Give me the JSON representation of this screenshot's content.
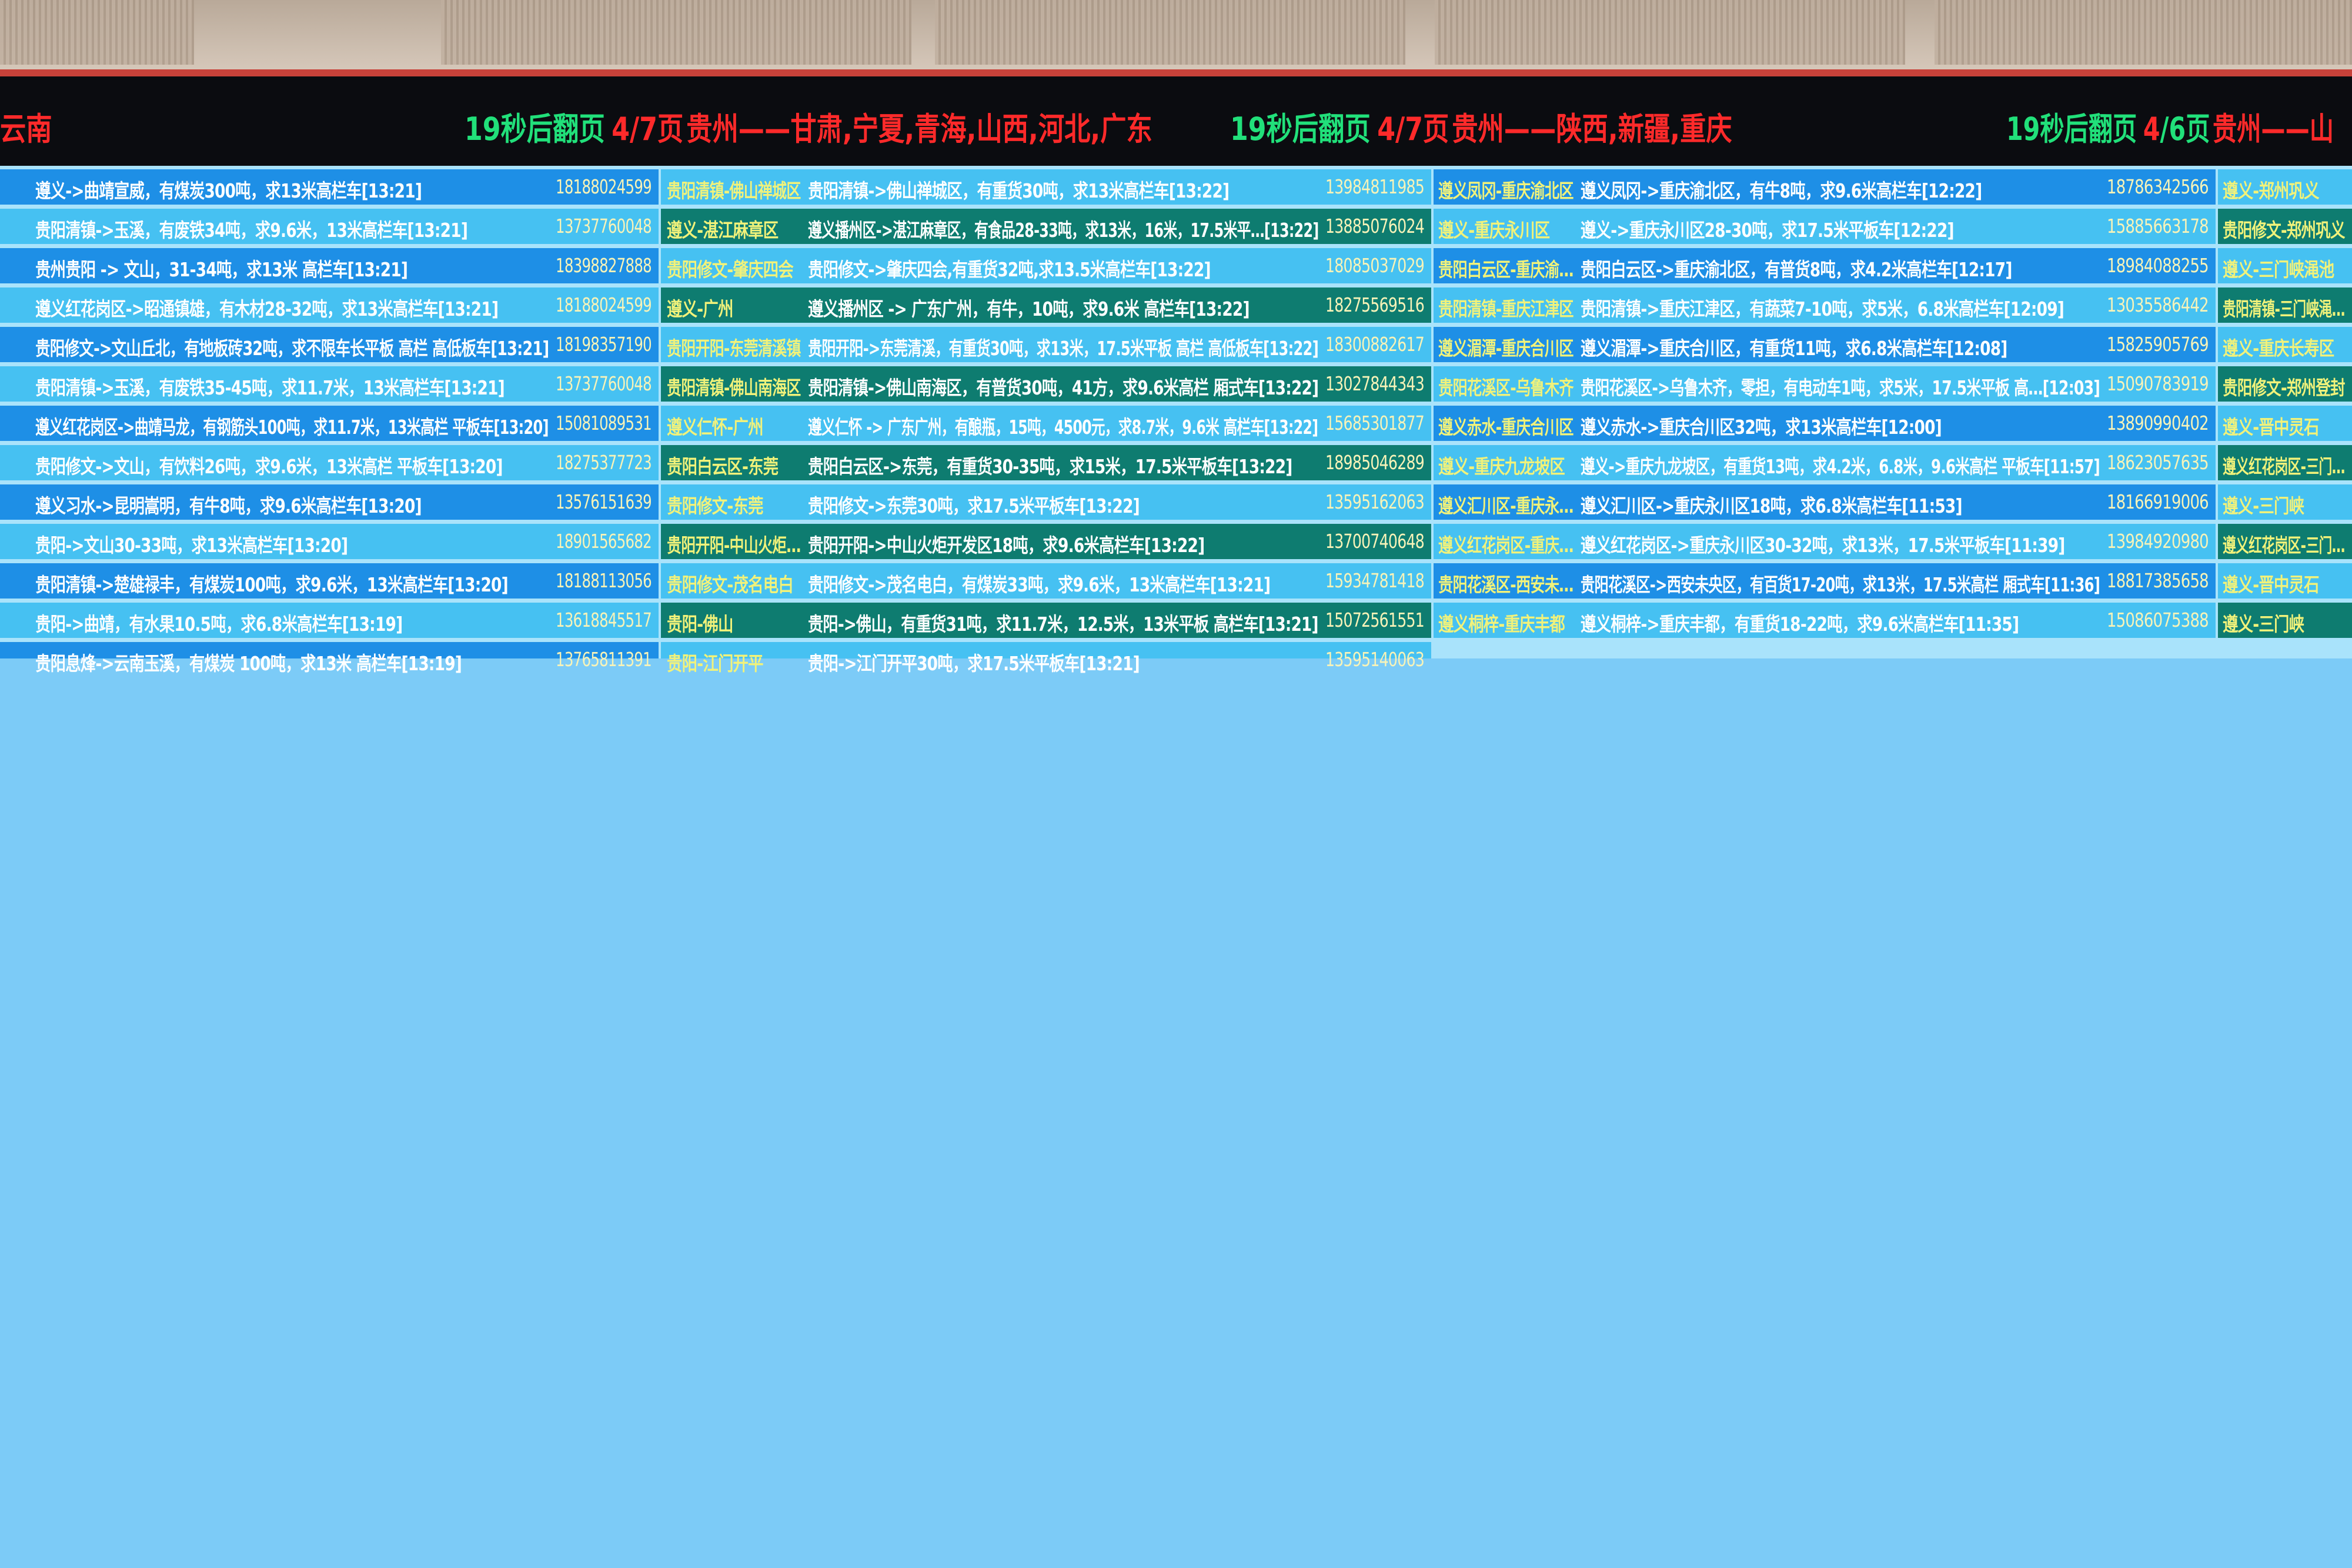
{
  "colors": {
    "dark_blue": "#1e8fe6",
    "light_blue": "#46c1f2",
    "teal": "#0e7c70",
    "label_yellow": "#f1f27a",
    "header_green": "#21e07a",
    "header_red": "#ff2a2a"
  },
  "headers": [
    {
      "region": "云南"
    },
    {
      "countdown": "19秒后翻页",
      "page_current": "4",
      "page_rest": "/7页",
      "region": "贵州——甘肃,宁夏,青海,山西,河北,广东"
    },
    {
      "countdown": "19秒后翻页",
      "page_current": "4",
      "page_rest": "/7页",
      "region": "贵州——陕西,新疆,重庆"
    },
    {
      "countdown": "19秒后翻页",
      "page_current": "4",
      "page_rest": "/6页",
      "region": "贵州——山"
    }
  ],
  "columns": [
    {
      "rows": [
        {
          "desc": "遵义->曲靖宣威，有煤炭300吨，求13米高栏车[13:21]",
          "phone": "18188024599"
        },
        {
          "desc": "贵阳清镇->玉溪，有废铁34吨，求9.6米，13米高栏车[13:21]",
          "phone": "13737760048"
        },
        {
          "desc": "贵州贵阳 -> 文山，31-34吨，求13米 高栏车[13:21]",
          "phone": "18398827888"
        },
        {
          "desc": "遵义红花岗区->昭通镇雄，有木材28-32吨，求13米高栏车[13:21]",
          "phone": "18188024599"
        },
        {
          "desc": "贵阳修文->文山丘北，有地板砖32吨，求不限车长平板 高栏 高低板车[13:21]",
          "phone": "18198357190"
        },
        {
          "desc": "贵阳清镇->玉溪，有废铁35-45吨，求11.7米，13米高栏车[13:21]",
          "phone": "13737760048"
        },
        {
          "desc": "遵义红花岗区->曲靖马龙，有钢筋头100吨，求11.7米，13米高栏 平板车[13:20]",
          "phone": "15081089531"
        },
        {
          "desc": "贵阳修文->文山，有饮料26吨，求9.6米，13米高栏 平板车[13:20]",
          "phone": "18275377723"
        },
        {
          "desc": "遵义习水->昆明嵩明，有牛8吨，求9.6米高栏车[13:20]",
          "phone": "13576151639"
        },
        {
          "desc": "贵阳->文山30-33吨，求13米高栏车[13:20]",
          "phone": "18901565682"
        },
        {
          "desc": "贵阳清镇->楚雄禄丰，有煤炭100吨，求9.6米，13米高栏车[13:20]",
          "phone": "18188113056"
        },
        {
          "desc": "贵阳->曲靖，有水果10.5吨，求6.8米高栏车[13:19]",
          "phone": "13618845517"
        },
        {
          "desc": "贵阳息烽->云南玉溪，有煤炭 100吨，求13米 高栏车[13:19]",
          "phone": "13765811391"
        }
      ]
    },
    {
      "rows": [
        {
          "route": "贵阳清镇-佛山禅城区",
          "desc": "贵阳清镇->佛山禅城区，有重货30吨，求13米高栏车[13:22]",
          "phone": "13984811985"
        },
        {
          "route": "遵义-湛江麻章区",
          "desc": "遵义播州区->湛江麻章区，有食品28-33吨，求13米，16米，17.5米平…[13:22]",
          "phone": "13885076024"
        },
        {
          "route": "贵阳修文-肇庆四会",
          "desc": "贵阳修文->肇庆四会,有重货32吨,求13.5米高栏车[13:22]",
          "phone": "18085037029"
        },
        {
          "route": "遵义-广州",
          "desc": "遵义播州区 -> 广东广州，有牛，10吨，求9.6米 高栏车[13:22]",
          "phone": "18275569516"
        },
        {
          "route": "贵阳开阳-东莞清溪镇",
          "desc": "贵阳开阳->东莞清溪，有重货30吨，求13米，17.5米平板 高栏 高低板车[13:22]",
          "phone": "18300882617"
        },
        {
          "route": "贵阳清镇-佛山南海区",
          "desc": "贵阳清镇->佛山南海区，有普货30吨，41方，求9.6米高栏 厢式车[13:22]",
          "phone": "13027844343"
        },
        {
          "route": "遵义仁怀-广州",
          "desc": "遵义仁怀 -> 广东广州，有酿瓶，15吨，4500元，求8.7米，9.6米 高栏车[13:22]",
          "phone": "15685301877"
        },
        {
          "route": "贵阳白云区-东莞",
          "desc": "贵阳白云区->东莞，有重货30-35吨，求15米，17.5米平板车[13:22]",
          "phone": "18985046289"
        },
        {
          "route": "贵阳修文-东莞",
          "desc": "贵阳修文->东莞30吨，求17.5米平板车[13:22]",
          "phone": "13595162063"
        },
        {
          "route": "贵阳开阳-中山火炬…",
          "desc": "贵阳开阳->中山火炬开发区18吨，求9.6米高栏车[13:22]",
          "phone": "13700740648"
        },
        {
          "route": "贵阳修文-茂名电白",
          "desc": "贵阳修文->茂名电白，有煤炭33吨，求9.6米，13米高栏车[13:21]",
          "phone": "15934781418"
        },
        {
          "route": "贵阳-佛山",
          "desc": "贵阳->佛山，有重货31吨，求11.7米，12.5米，13米平板 高栏车[13:21]",
          "phone": "15072561551"
        },
        {
          "route": "贵阳-江门开平",
          "desc": "贵阳->江门开平30吨，求17.5米平板车[13:21]",
          "phone": "13595140063"
        }
      ]
    },
    {
      "rows": [
        {
          "route": "遵义凤冈-重庆渝北区",
          "desc": "遵义凤冈->重庆渝北区，有牛8吨，求9.6米高栏车[12:22]",
          "phone": "18786342566"
        },
        {
          "route": "遵义-重庆永川区",
          "desc": "遵义->重庆永川区28-30吨，求17.5米平板车[12:22]",
          "phone": "15885663178"
        },
        {
          "route": "贵阳白云区-重庆渝…",
          "desc": "贵阳白云区->重庆渝北区，有普货8吨，求4.2米高栏车[12:17]",
          "phone": "18984088255"
        },
        {
          "route": "贵阳清镇-重庆江津区",
          "desc": "贵阳清镇->重庆江津区，有蔬菜7-10吨，求5米，6.8米高栏车[12:09]",
          "phone": "13035586442"
        },
        {
          "route": "遵义湄潭-重庆合川区",
          "desc": "遵义湄潭->重庆合川区，有重货11吨，求6.8米高栏车[12:08]",
          "phone": "15825905769"
        },
        {
          "route": "贵阳花溪区-乌鲁木齐",
          "desc": "贵阳花溪区->乌鲁木齐，零担，有电动车1吨，求5米，17.5米平板 高…[12:03]",
          "phone": "15090783919"
        },
        {
          "route": "遵义赤水-重庆合川区",
          "desc": "遵义赤水->重庆合川区32吨，求13米高栏车[12:00]",
          "phone": "13890990402"
        },
        {
          "route": "遵义-重庆九龙坡区",
          "desc": "遵义->重庆九龙坡区，有重货13吨，求4.2米，6.8米，9.6米高栏 平板车[11:57]",
          "phone": "18623057635"
        },
        {
          "route": "遵义汇川区-重庆永…",
          "desc": "遵义汇川区->重庆永川区18吨，求6.8米高栏车[11:53]",
          "phone": "18166919006"
        },
        {
          "route": "遵义红花岗区-重庆…",
          "desc": "遵义红花岗区->重庆永川区30-32吨，求13米，17.5米平板车[11:39]",
          "phone": "13984920980"
        },
        {
          "route": "贵阳花溪区-西安未…",
          "desc": "贵阳花溪区->西安未央区，有百货17-20吨，求13米，17.5米高栏 厢式车[11:36]",
          "phone": "18817385658"
        },
        {
          "route": "遵义桐梓-重庆丰都",
          "desc": "遵义桐梓->重庆丰都，有重货18-22吨，求9.6米高栏车[11:35]",
          "phone": "15086075388"
        }
      ]
    },
    {
      "rows": [
        {
          "route": "遵义-郑州巩义"
        },
        {
          "route": "贵阳修文-郑州巩义"
        },
        {
          "route": "遵义-三门峡渑池"
        },
        {
          "route": "贵阳清镇-三门峡渑…"
        },
        {
          "route": "遵义-重庆长寿区"
        },
        {
          "route": "贵阳修文-郑州登封"
        },
        {
          "route": "遵义-晋中灵石"
        },
        {
          "route": "遵义红花岗区-三门…"
        },
        {
          "route": "遵义-三门峡"
        },
        {
          "route": "遵义红花岗区-三门…"
        },
        {
          "route": "遵义-晋中灵石"
        },
        {
          "route": "遵义-三门峡"
        }
      ]
    }
  ]
}
